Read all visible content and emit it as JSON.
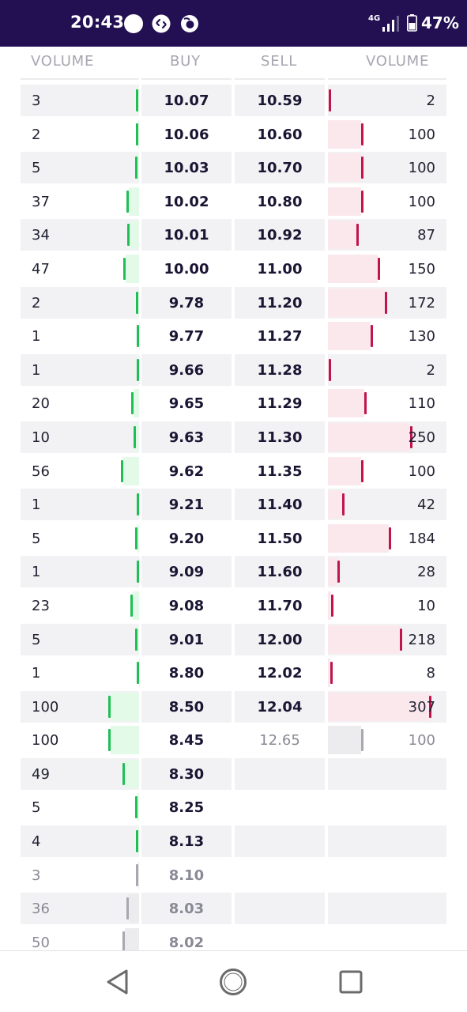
{
  "status_bar": {
    "time": "20:43",
    "network": "4G",
    "battery": "47%",
    "icons": [
      "notification-dot-icon",
      "shazam-icon",
      "firefox-icon",
      "signal-icon",
      "battery-icon"
    ]
  },
  "headers": {
    "buy_volume": "VOLUME",
    "buy": "BUY",
    "sell": "SELL",
    "sell_volume": "VOLUME"
  },
  "colors": {
    "status_bar": "#231053",
    "buy_tick": "#1fbf55",
    "buy_fill": "#e4fae9",
    "sell_tick": "#c0144c",
    "sell_fill": "#fbe8ed",
    "muted": "#a8a8b0"
  },
  "rows": [
    {
      "bvol": "3",
      "buy": "10.07",
      "sell": "10.59",
      "svol": "2"
    },
    {
      "bvol": "2",
      "buy": "10.06",
      "sell": "10.60",
      "svol": "100"
    },
    {
      "bvol": "5",
      "buy": "10.03",
      "sell": "10.70",
      "svol": "100"
    },
    {
      "bvol": "37",
      "buy": "10.02",
      "sell": "10.80",
      "svol": "100"
    },
    {
      "bvol": "34",
      "buy": "10.01",
      "sell": "10.92",
      "svol": "87"
    },
    {
      "bvol": "47",
      "buy": "10.00",
      "sell": "11.00",
      "svol": "150"
    },
    {
      "bvol": "2",
      "buy": "9.78",
      "sell": "11.20",
      "svol": "172"
    },
    {
      "bvol": "1",
      "buy": "9.77",
      "sell": "11.27",
      "svol": "130"
    },
    {
      "bvol": "1",
      "buy": "9.66",
      "sell": "11.28",
      "svol": "2"
    },
    {
      "bvol": "20",
      "buy": "9.65",
      "sell": "11.29",
      "svol": "110"
    },
    {
      "bvol": "10",
      "buy": "9.63",
      "sell": "11.30",
      "svol": "250"
    },
    {
      "bvol": "56",
      "buy": "9.62",
      "sell": "11.35",
      "svol": "100"
    },
    {
      "bvol": "1",
      "buy": "9.21",
      "sell": "11.40",
      "svol": "42"
    },
    {
      "bvol": "5",
      "buy": "9.20",
      "sell": "11.50",
      "svol": "184"
    },
    {
      "bvol": "1",
      "buy": "9.09",
      "sell": "11.60",
      "svol": "28"
    },
    {
      "bvol": "23",
      "buy": "9.08",
      "sell": "11.70",
      "svol": "10"
    },
    {
      "bvol": "5",
      "buy": "9.01",
      "sell": "12.00",
      "svol": "218"
    },
    {
      "bvol": "1",
      "buy": "8.80",
      "sell": "12.02",
      "svol": "8"
    },
    {
      "bvol": "100",
      "buy": "8.50",
      "sell": "12.04",
      "svol": "307"
    },
    {
      "bvol": "100",
      "buy": "8.45",
      "sell": "12.65",
      "svol": "100",
      "sell_muted": true
    },
    {
      "bvol": "49",
      "buy": "8.30",
      "sell": "",
      "svol": ""
    },
    {
      "bvol": "5",
      "buy": "8.25",
      "sell": "",
      "svol": ""
    },
    {
      "bvol": "4",
      "buy": "8.13",
      "sell": "",
      "svol": ""
    },
    {
      "bvol": "3",
      "buy": "8.10",
      "sell": "",
      "svol": "",
      "buy_muted": true
    },
    {
      "bvol": "36",
      "buy": "8.03",
      "sell": "",
      "svol": "",
      "buy_muted": true
    },
    {
      "bvol": "50",
      "buy": "8.02",
      "sell": "",
      "svol": "",
      "buy_muted": true
    }
  ],
  "nav": {
    "icons": [
      "back-icon",
      "home-icon",
      "recents-icon"
    ]
  }
}
